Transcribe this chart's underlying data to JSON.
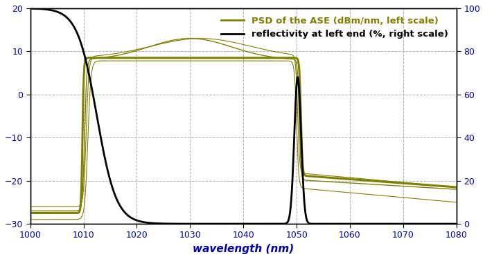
{
  "xlim": [
    1000,
    1080
  ],
  "ylim_left": [
    -30,
    20
  ],
  "ylim_right": [
    0,
    100
  ],
  "xlabel": "wavelength (nm)",
  "legend": [
    "PSD of the ASE (dBm/nm, left scale)",
    "reflectivity at left end (%, right scale)"
  ],
  "bg_color": "#ffffff",
  "grid_color": "#b0b0b0",
  "ase_color": "#808000",
  "reflectivity_color": "#000000",
  "xticks": [
    1000,
    1010,
    1020,
    1030,
    1040,
    1050,
    1060,
    1070,
    1080
  ],
  "yticks_left": [
    -30,
    -20,
    -10,
    0,
    10,
    20
  ],
  "yticks_right": [
    0,
    20,
    40,
    60,
    80,
    100
  ],
  "tick_color": "#0000aa",
  "label_color": "#0000aa",
  "spine_color": "#000000"
}
